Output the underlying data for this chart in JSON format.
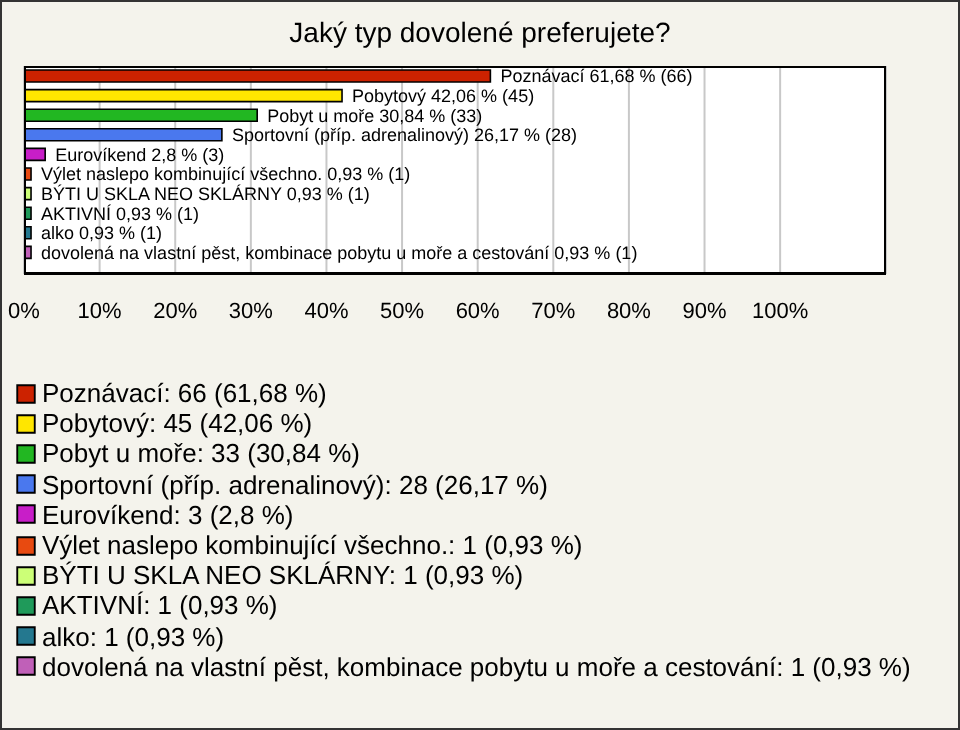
{
  "chart_data": {
    "type": "bar",
    "orientation": "horizontal",
    "stacked": true,
    "title": "Jaký typ dovolené preferujete?",
    "categories": [
      null,
      null,
      null,
      null,
      null,
      null,
      null,
      null,
      null,
      null
    ],
    "series": [
      {
        "name": "Poznávací: 66 (61,68 %)",
        "color": "#cc2200",
        "values": [
          61.68,
          null,
          null,
          null,
          null,
          null,
          null,
          null,
          null,
          null
        ],
        "value_labels": [
          "Poznávací 61,68 % (66)",
          null,
          null,
          null,
          null,
          null,
          null,
          null,
          null,
          null
        ]
      },
      {
        "name": "Pobytový: 45 (42,06 %)",
        "color": "#ffe600",
        "values": [
          null,
          42.06,
          null,
          null,
          null,
          null,
          null,
          null,
          null,
          null
        ],
        "value_labels": [
          null,
          "Pobytový 42,06 % (45)",
          null,
          null,
          null,
          null,
          null,
          null,
          null,
          null
        ]
      },
      {
        "name": "Pobyt u moře: 33 (30,84 %)",
        "color": "#22b722",
        "values": [
          null,
          null,
          30.84,
          null,
          null,
          null,
          null,
          null,
          null,
          null
        ],
        "value_labels": [
          null,
          null,
          "Pobyt u moře 30,84 % (33)",
          null,
          null,
          null,
          null,
          null,
          null,
          null
        ]
      },
      {
        "name": "Sportovní (příp. adrenalinový): 28 (26,17 %)",
        "color": "#4a78ee",
        "values": [
          null,
          null,
          null,
          26.17,
          null,
          null,
          null,
          null,
          null,
          null
        ],
        "value_labels": [
          null,
          null,
          null,
          "Sportovní (příp. adrenalinový) 26,17 % (28)",
          null,
          null,
          null,
          null,
          null,
          null
        ]
      },
      {
        "name": "Eurovíkend: 3 (2,8 %)",
        "color": "#c81ec8",
        "values": [
          null,
          null,
          null,
          null,
          2.8,
          null,
          null,
          null,
          null,
          null
        ],
        "value_labels": [
          null,
          null,
          null,
          null,
          "Eurovíkend 2,8 % (3)",
          null,
          null,
          null,
          null,
          null
        ]
      },
      {
        "name": "Výlet naslepo kombinující všechno.: 1 (0,93 %)",
        "color": "#e84a10",
        "values": [
          null,
          null,
          null,
          null,
          null,
          0.93,
          null,
          null,
          null,
          null
        ],
        "value_labels": [
          null,
          null,
          null,
          null,
          null,
          "Výlet naslepo kombinující všechno. 0,93 % (1)",
          null,
          null,
          null,
          null
        ]
      },
      {
        "name": "BÝTI U SKLA NEO SKLÁRNY: 1 (0,93 %)",
        "color": "#ccff77",
        "values": [
          null,
          null,
          null,
          null,
          null,
          null,
          0.93,
          null,
          null,
          null
        ],
        "value_labels": [
          null,
          null,
          null,
          null,
          null,
          null,
          "BÝTI U SKLA NEO SKLÁRNY 0,93 % (1)",
          null,
          null,
          null
        ]
      },
      {
        "name": "AKTIVNÍ: 1 (0,93 %)",
        "color": "#1f9a5a",
        "values": [
          null,
          null,
          null,
          null,
          null,
          null,
          null,
          0.93,
          null,
          null
        ],
        "value_labels": [
          null,
          null,
          null,
          null,
          null,
          null,
          null,
          "AKTIVNÍ 0,93 % (1)",
          null,
          null
        ]
      },
      {
        "name": "alko: 1 (0,93 %)",
        "color": "#24788f",
        "values": [
          null,
          null,
          null,
          null,
          null,
          null,
          null,
          null,
          0.93,
          null
        ],
        "value_labels": [
          null,
          null,
          null,
          null,
          null,
          null,
          null,
          null,
          "alko 0,93 % (1)",
          null
        ]
      },
      {
        "name": "dovolená na vlastní pěst, kombinace pobytu u moře a cestování: 1 (0,93 %)",
        "color": "#c060b8",
        "values": [
          null,
          null,
          null,
          null,
          null,
          null,
          null,
          null,
          null,
          0.93
        ],
        "value_labels": [
          null,
          null,
          null,
          null,
          null,
          null,
          null,
          null,
          null,
          "dovolená na vlastní pěst, kombinace pobytu u moře a cestování 0,93 % (1)"
        ]
      }
    ],
    "xlim": [
      0,
      114
    ],
    "xticks": [
      {
        "value": 0,
        "label": "0%"
      },
      {
        "value": 10,
        "label": "10%"
      },
      {
        "value": 20,
        "label": "20%"
      },
      {
        "value": 30,
        "label": "30%"
      },
      {
        "value": 40,
        "label": "40%"
      },
      {
        "value": 50,
        "label": "50%"
      },
      {
        "value": 60,
        "label": "60%"
      },
      {
        "value": 70,
        "label": "70%"
      },
      {
        "value": 80,
        "label": "80%"
      },
      {
        "value": 90,
        "label": "90%"
      },
      {
        "value": 100,
        "label": "100%"
      }
    ],
    "grid": "x",
    "legend": "bottom",
    "tick_labels": "x"
  }
}
